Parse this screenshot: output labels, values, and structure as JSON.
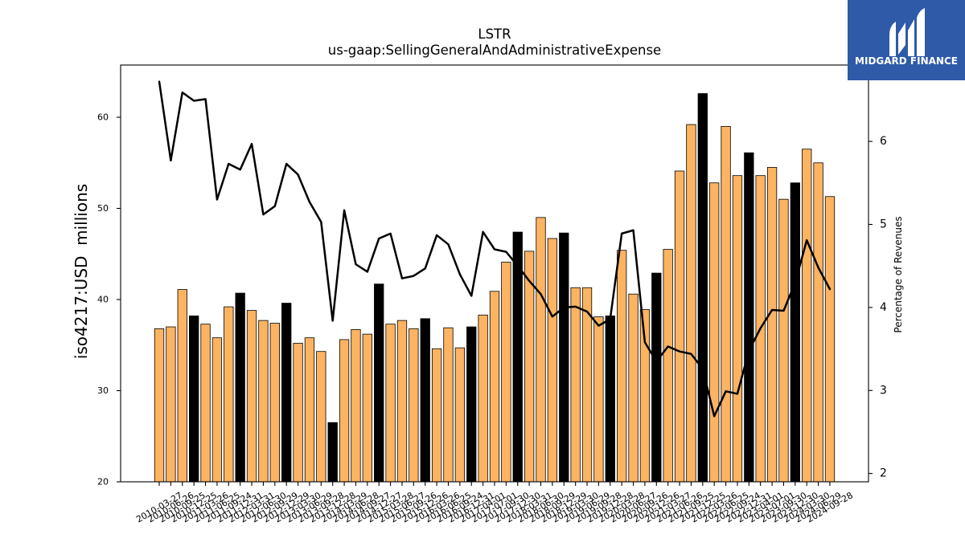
{
  "chart_data": {
    "type": "bar",
    "title": "LSTR",
    "subtitle": "us-gaap:SellingGeneralAndAdministrativeExpense",
    "categories": [
      "2010-03-27",
      "2010-06-26",
      "2010-09-25",
      "2010-12-25",
      "2011-03-26",
      "2011-06-25",
      "2011-09-24",
      "2011-12-31",
      "2012-03-31",
      "2012-06-30",
      "2012-09-29",
      "2012-12-29",
      "2013-03-30",
      "2013-06-29",
      "2013-09-28",
      "2013-12-28",
      "2014-03-29",
      "2014-06-28",
      "2014-09-27",
      "2014-12-27",
      "2015-03-28",
      "2015-06-27",
      "2015-09-26",
      "2015-12-26",
      "2016-03-26",
      "2016-06-25",
      "2016-09-24",
      "2016-12-31",
      "2017-04-01",
      "2017-07-01",
      "2017-09-30",
      "2017-12-30",
      "2018-03-31",
      "2018-06-30",
      "2018-09-29",
      "2018-12-29",
      "2019-03-30",
      "2019-06-29",
      "2019-09-28",
      "2019-12-28",
      "2020-03-28",
      "2020-06-27",
      "2020-09-26",
      "2020-12-26",
      "2021-03-27",
      "2021-06-26",
      "2021-09-25",
      "2021-12-25",
      "2022-03-26",
      "2022-06-25",
      "2022-09-24",
      "2022-12-31",
      "2023-04-01",
      "2023-07-01",
      "2023-09-30",
      "2023-12-30",
      "2024-03-30",
      "2024-06-29",
      "2024-09-28"
    ],
    "series": [
      {
        "type": "bar",
        "axis": "left",
        "color": "#fdb462",
        "highlight_color": "#000000",
        "values": [
          36.8,
          37.0,
          41.1,
          38.2,
          37.3,
          35.8,
          39.2,
          40.7,
          38.8,
          37.7,
          37.4,
          39.6,
          35.2,
          35.8,
          34.3,
          26.5,
          35.6,
          36.7,
          36.2,
          41.7,
          37.3,
          37.7,
          36.8,
          37.9,
          34.6,
          36.9,
          34.7,
          37.0,
          38.3,
          40.9,
          44.1,
          47.4,
          45.3,
          49.0,
          46.7,
          47.3,
          41.3,
          41.3,
          38.1,
          38.2,
          45.4,
          40.6,
          38.9,
          42.9,
          45.5,
          54.1,
          59.2,
          62.6,
          52.8,
          59.0,
          53.6,
          56.1,
          53.6,
          54.5,
          51.0,
          52.8,
          56.5,
          55.0,
          51.3
        ]
      },
      {
        "type": "line",
        "axis": "right",
        "color": "#000000",
        "values": [
          6.72,
          5.77,
          6.59,
          6.49,
          6.51,
          5.3,
          5.73,
          5.66,
          5.97,
          5.12,
          5.22,
          5.73,
          5.6,
          5.27,
          5.03,
          3.84,
          5.17,
          4.52,
          4.43,
          4.83,
          4.89,
          4.35,
          4.38,
          4.47,
          4.87,
          4.76,
          4.4,
          4.14,
          4.91,
          4.7,
          4.67,
          4.5,
          4.32,
          4.16,
          3.89,
          4.0,
          4.01,
          3.95,
          3.78,
          3.86,
          4.89,
          4.93,
          3.58,
          3.35,
          3.53,
          3.47,
          3.44,
          3.26,
          2.69,
          2.99,
          2.96,
          3.48,
          3.75,
          3.97,
          3.96,
          4.3,
          4.81,
          4.48,
          4.22
        ]
      }
    ],
    "highlighted": [
      "2010-12-25",
      "2011-12-31",
      "2012-12-29",
      "2013-12-28",
      "2014-12-27",
      "2015-12-26",
      "2016-12-31",
      "2017-12-30",
      "2018-12-29",
      "2019-12-28",
      "2020-12-26",
      "2021-12-25",
      "2022-12-31",
      "2023-12-30"
    ],
    "ylabel": "iso4217:USD  millions",
    "ylim": [
      20,
      65.73
    ],
    "yticks": [
      20,
      30,
      40,
      50,
      60
    ],
    "y2label": "Percentage of Revenues",
    "y2lim": [
      1.9,
      6.92
    ],
    "y2ticks": [
      2,
      3,
      4,
      5,
      6
    ],
    "grid": false,
    "legend": "none"
  },
  "logo": {
    "text": "MIDGARD FINANCE",
    "background": "#2e5aa8",
    "icon": "midgard-m-icon"
  }
}
